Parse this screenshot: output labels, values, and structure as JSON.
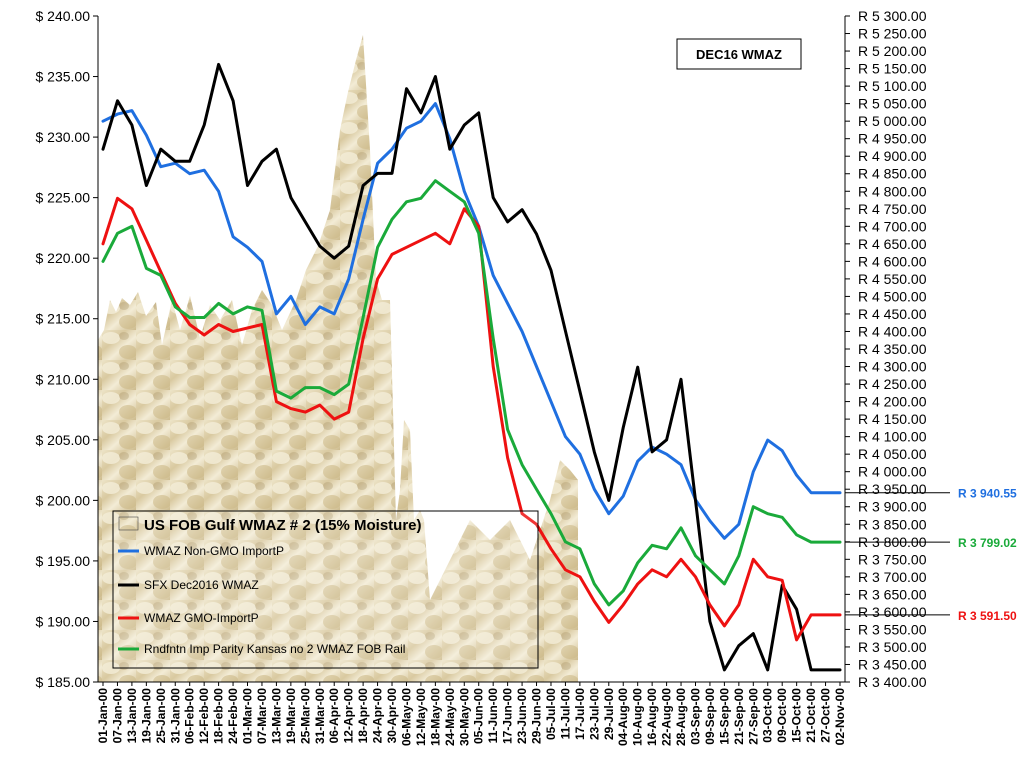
{
  "chart_data": {
    "type": "line",
    "title": "DEC16 WMAZ",
    "legend_title": "US FOB Gulf WMAZ # 2 (15% Moisture)",
    "legend_position": "bottom-left",
    "grid": false,
    "y_left": {
      "min": 185,
      "max": 240,
      "step": 5,
      "ticks": [
        "$ 185.00",
        "$ 190.00",
        "$ 195.00",
        "$ 200.00",
        "$ 205.00",
        "$ 210.00",
        "$ 215.00",
        "$ 220.00",
        "$ 225.00",
        "$ 230.00",
        "$ 235.00",
        "$ 240.00"
      ]
    },
    "y_right": {
      "min": 3400,
      "max": 5300,
      "step": 50,
      "ticks": [
        "R 3 400.00",
        "R 3 450.00",
        "R 3 500.00",
        "R 3 550.00",
        "R 3 600.00",
        "R 3 650.00",
        "R 3 700.00",
        "R 3 750.00",
        "R 3 800.00",
        "R 3 850.00",
        "R 3 900.00",
        "R 3 950.00",
        "R 4 000.00",
        "R 4 050.00",
        "R 4 100.00",
        "R 4 150.00",
        "R 4 200.00",
        "R 4 250.00",
        "R 4 300.00",
        "R 4 350.00",
        "R 4 400.00",
        "R 4 450.00",
        "R 4 500.00",
        "R 4 550.00",
        "R 4 600.00",
        "R 4 650.00",
        "R 4 700.00",
        "R 4 750.00",
        "R 4 800.00",
        "R 4 850.00",
        "R 4 900.00",
        "R 4 950.00",
        "R 5 000.00",
        "R 5 050.00",
        "R 5 100.00",
        "R 5 150.00",
        "R 5 200.00",
        "R 5 250.00",
        "R 5 300.00"
      ]
    },
    "categories": [
      "01-Jan-00",
      "07-Jan-00",
      "13-Jan-00",
      "19-Jan-00",
      "25-Jan-00",
      "31-Jan-00",
      "06-Feb-00",
      "12-Feb-00",
      "18-Feb-00",
      "24-Feb-00",
      "01-Mar-00",
      "07-Mar-00",
      "13-Mar-00",
      "19-Mar-00",
      "25-Mar-00",
      "31-Mar-00",
      "06-Apr-00",
      "12-Apr-00",
      "18-Apr-00",
      "24-Apr-00",
      "30-Apr-00",
      "06-May-00",
      "12-May-00",
      "18-May-00",
      "24-May-00",
      "30-May-00",
      "05-Jun-00",
      "11-Jun-00",
      "17-Jun-00",
      "23-Jun-00",
      "29-Jun-00",
      "05-Jul-00",
      "11-Jul-00",
      "17-Jul-00",
      "23-Jul-00",
      "29-Jul-00",
      "04-Aug-00",
      "10-Aug-00",
      "16-Aug-00",
      "22-Aug-00",
      "28-Aug-00",
      "03-Sep-00",
      "09-Sep-00",
      "15-Sep-00",
      "21-Sep-00",
      "27-Sep-00",
      "03-Oct-00",
      "09-Oct-00",
      "15-Oct-00",
      "21-Oct-00",
      "27-Oct-00",
      "02-Nov-00"
    ],
    "series": [
      {
        "name": "WMAZ Non-GMO ImportP",
        "axis": "right",
        "color": "#1f6fe0",
        "end_label": "R 3 940.55",
        "values": [
          5000,
          5020,
          5030,
          4960,
          4870,
          4880,
          4850,
          4860,
          4800,
          4670,
          4640,
          4600,
          4450,
          4500,
          4420,
          4470,
          4450,
          4550,
          4720,
          4880,
          4920,
          4980,
          5000,
          5050,
          4950,
          4800,
          4700,
          4560,
          4480,
          4400,
          4300,
          4200,
          4100,
          4050,
          3950,
          3880,
          3930,
          4030,
          4070,
          4050,
          4020,
          3920,
          3860,
          3810,
          3850,
          4000,
          4090,
          4060,
          3990,
          3940,
          3940,
          3940
        ]
      },
      {
        "name": "SFX Dec2016 WMAZ",
        "axis": "left",
        "color": "#000000",
        "end_label": "",
        "values": [
          229,
          233,
          231,
          226,
          229,
          228,
          228,
          231,
          236,
          233,
          226,
          228,
          229,
          225,
          223,
          221,
          220,
          221,
          226,
          227,
          227,
          234,
          232,
          235,
          229,
          231,
          232,
          225,
          223,
          224,
          222,
          219,
          214,
          209,
          204,
          200,
          206,
          211,
          204,
          205,
          210,
          200,
          190,
          186,
          188,
          189,
          186,
          193,
          191,
          186,
          186,
          186
        ]
      },
      {
        "name": "WMAZ GMO-ImportP",
        "axis": "right",
        "color": "#ee1111",
        "end_label": "R 3 591.50",
        "values": [
          4650,
          4780,
          4750,
          4660,
          4570,
          4480,
          4420,
          4390,
          4420,
          4400,
          4410,
          4420,
          4200,
          4180,
          4170,
          4190,
          4150,
          4170,
          4380,
          4550,
          4620,
          4640,
          4660,
          4680,
          4650,
          4750,
          4700,
          4300,
          4040,
          3880,
          3850,
          3780,
          3720,
          3700,
          3630,
          3570,
          3620,
          3680,
          3720,
          3700,
          3750,
          3700,
          3620,
          3560,
          3620,
          3750,
          3700,
          3690,
          3520,
          3591.5,
          3591.5,
          3591.5
        ]
      },
      {
        "name": "Rndfntn Imp Parity Kansas no 2 WMAZ FOB Rail",
        "axis": "right",
        "color": "#1aaa3a",
        "end_label": "R 3 799.02",
        "values": [
          4600,
          4680,
          4700,
          4580,
          4560,
          4470,
          4440,
          4440,
          4480,
          4450,
          4470,
          4460,
          4230,
          4210,
          4240,
          4240,
          4220,
          4250,
          4440,
          4640,
          4720,
          4770,
          4780,
          4830,
          4800,
          4770,
          4680,
          4380,
          4120,
          4020,
          3950,
          3880,
          3800,
          3780,
          3680,
          3620,
          3660,
          3740,
          3790,
          3780,
          3840,
          3760,
          3720,
          3680,
          3760,
          3900,
          3880,
          3870,
          3820,
          3799.02,
          3799.02,
          3799.02
        ]
      }
    ]
  }
}
